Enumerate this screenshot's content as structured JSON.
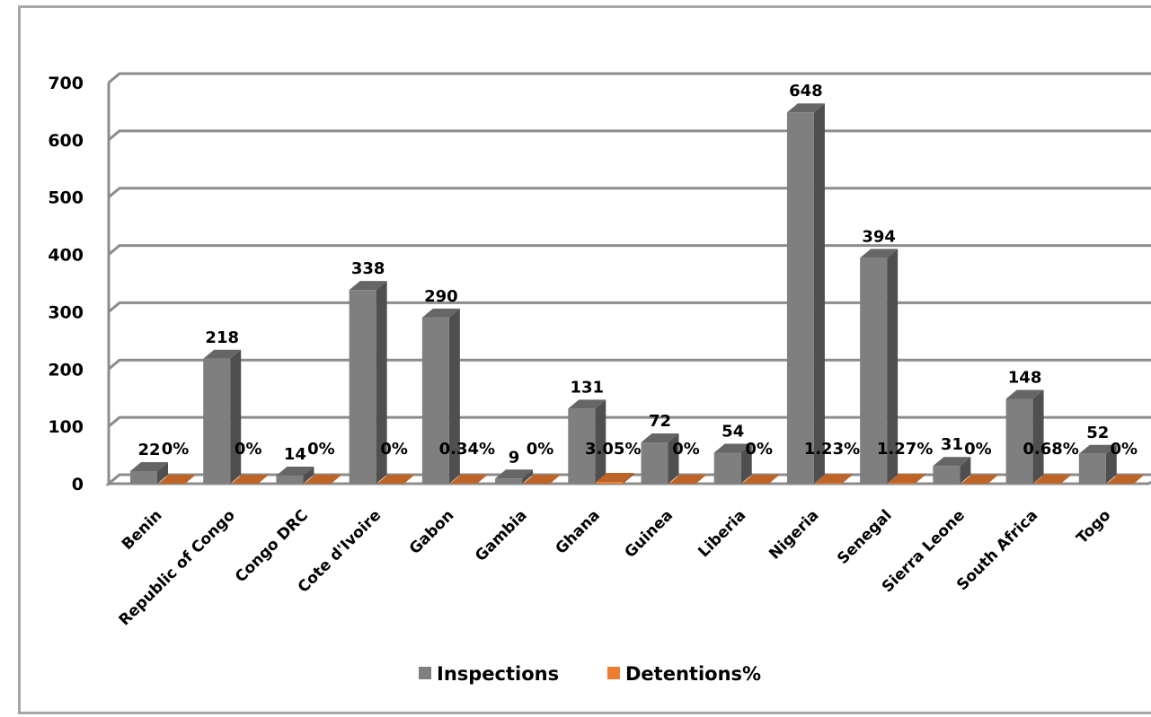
{
  "chart_data": {
    "type": "bar",
    "title": "",
    "xlabel": "",
    "ylabel": "",
    "ylim": [
      0,
      700
    ],
    "yticks": [
      "0",
      "100",
      "200",
      "300",
      "400",
      "500",
      "600",
      "700"
    ],
    "grid": true,
    "legend_position": "bottom",
    "categories": [
      "Benin",
      "Republic of Congo",
      "Congo DRC",
      "Cote d'Ivoire",
      "Gabon",
      "Gambia",
      "Ghana",
      "Guinea",
      "Liberia",
      "Nigeria",
      "Senegal",
      "Sierra Leone",
      "South Africa",
      "Togo"
    ],
    "series": [
      {
        "name": "Inspections",
        "color": "#7f7f7f",
        "values": [
          22,
          218,
          14,
          338,
          290,
          9,
          131,
          72,
          54,
          648,
          394,
          31,
          148,
          52
        ],
        "labels": [
          "22",
          "218",
          "14",
          "338",
          "290",
          "9",
          "131",
          "72",
          "54",
          "648",
          "394",
          "31",
          "148",
          "52"
        ]
      },
      {
        "name": "Detentions%",
        "color": "#ed7d31",
        "values": [
          0,
          0,
          0,
          0,
          0.34,
          0,
          3.05,
          0,
          0,
          1.23,
          1.27,
          0,
          0.68,
          0
        ],
        "labels": [
          "0%",
          "0%",
          "0%",
          "0%",
          "0.34%",
          "0%",
          "3.05%",
          "0%",
          "0%",
          "1.23%",
          "1.27%",
          "0%",
          "0.68%",
          "0%"
        ]
      }
    ]
  }
}
